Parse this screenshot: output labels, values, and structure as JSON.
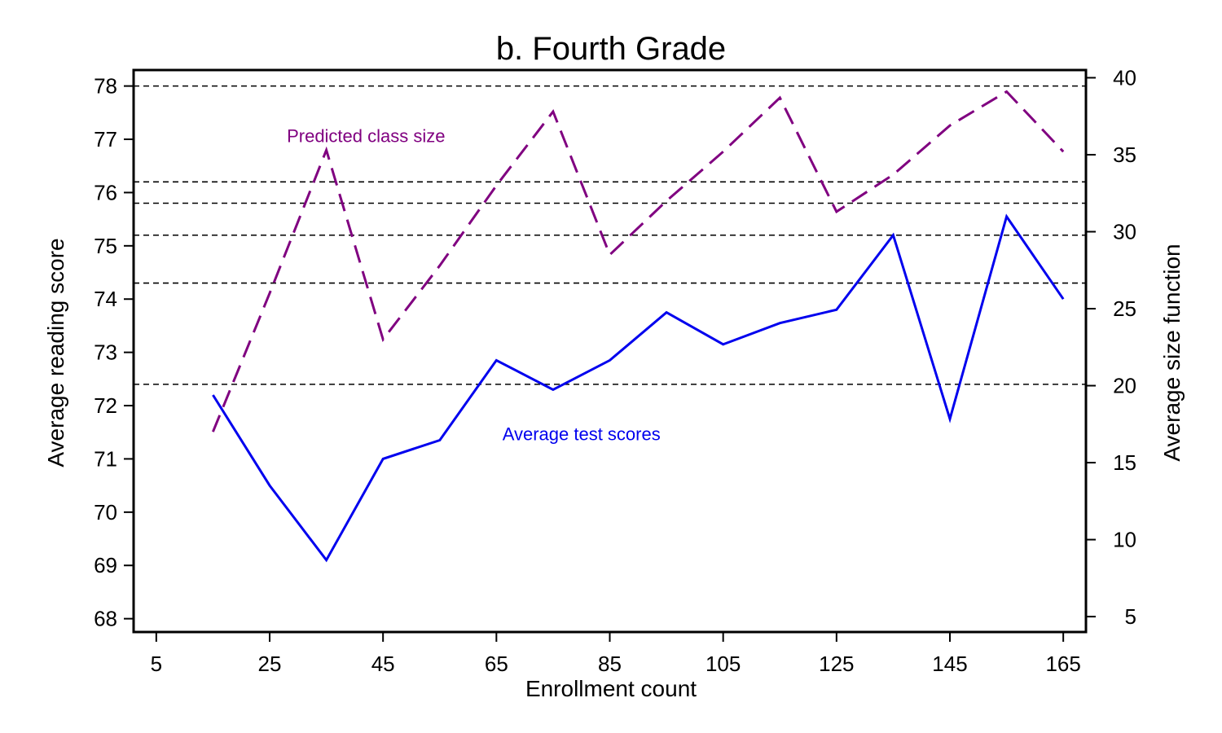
{
  "chart_data": {
    "type": "line",
    "title": "b. Fourth Grade",
    "xlabel": "Enrollment count",
    "ylabel_left": "Average reading score",
    "ylabel_right": "Average size function",
    "xlim": [
      1,
      169
    ],
    "ylim_left": [
      67.75,
      78.3
    ],
    "ylim_right": [
      4.0,
      40.5
    ],
    "xticks": [
      "5",
      "25",
      "45",
      "65",
      "85",
      "105",
      "125",
      "145",
      "165"
    ],
    "yticks_left": [
      "68",
      "69",
      "70",
      "71",
      "72",
      "73",
      "74",
      "75",
      "76",
      "77",
      "78"
    ],
    "yticks_right": [
      "5",
      "10",
      "15",
      "20",
      "25",
      "30",
      "35",
      "40"
    ],
    "reference_lines_left": [
      78.0,
      76.2,
      75.8,
      75.2,
      74.3,
      72.4
    ],
    "series": [
      {
        "name": "Average test scores",
        "axis": "left",
        "style": "solid",
        "color": "#0000ee",
        "x": [
          15,
          25,
          35,
          45,
          55,
          65,
          75,
          85,
          95,
          105,
          115,
          125,
          135,
          145,
          155,
          165
        ],
        "values": [
          72.2,
          70.5,
          69.1,
          71.0,
          71.35,
          72.85,
          72.3,
          72.85,
          73.75,
          73.15,
          73.55,
          73.8,
          75.2,
          71.75,
          75.55,
          74.0
        ]
      },
      {
        "name": "Predicted class size",
        "axis": "right",
        "style": "dashed",
        "color": "#800080",
        "x": [
          15,
          25,
          35,
          45,
          55,
          65,
          75,
          85,
          95,
          105,
          115,
          125,
          135,
          145,
          155,
          165
        ],
        "values": [
          17.0,
          26.0,
          35.3,
          23.0,
          27.8,
          33.0,
          37.8,
          28.5,
          32.0,
          35.2,
          38.7,
          31.3,
          33.7,
          36.9,
          39.1,
          35.2
        ]
      }
    ],
    "annotations": [
      {
        "text": "Predicted class size",
        "x": 42,
        "y_left": 76.95,
        "color": "#800080"
      },
      {
        "text": "Average test scores",
        "x": 80,
        "y_left": 71.35,
        "color": "#0000ee"
      }
    ]
  }
}
